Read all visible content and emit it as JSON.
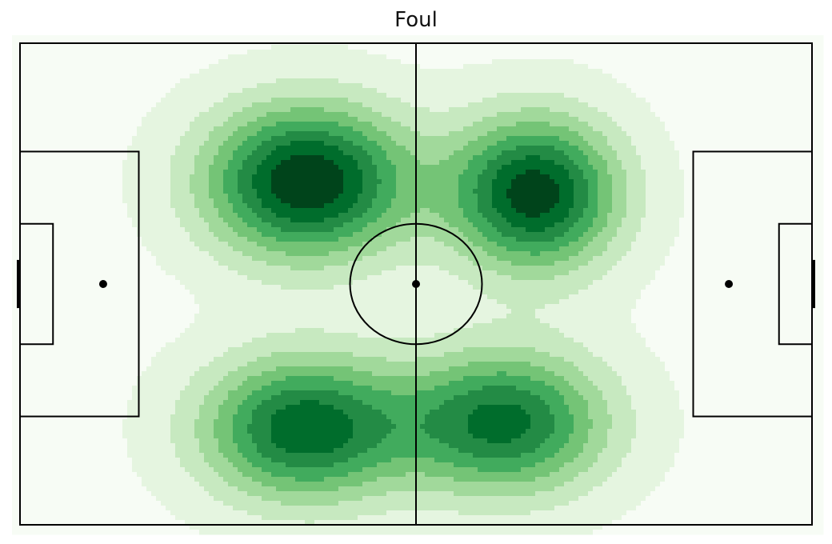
{
  "chart_data": {
    "type": "heatmap",
    "title": "Foul",
    "xlabel": "",
    "ylabel": "",
    "xlim": [
      0,
      120
    ],
    "ylim": [
      0,
      80
    ],
    "colormap": "Greens",
    "color_scale": [
      "#f7fcf5",
      "#e5f5e0",
      "#c7e9c0",
      "#a1d99b",
      "#74c476",
      "#41ab5d",
      "#238b45",
      "#006d2c",
      "#00441b"
    ],
    "levels": 9,
    "grid": false,
    "legend": "none",
    "density_hotspots": [
      {
        "x": 43.5,
        "y": 23.0,
        "weight": 1.0,
        "sx": 11.0,
        "sy": 9.0
      },
      {
        "x": 78.0,
        "y": 25.0,
        "weight": 0.95,
        "sx": 9.0,
        "sy": 9.0
      },
      {
        "x": 43.0,
        "y": 64.0,
        "weight": 0.85,
        "sx": 11.0,
        "sy": 8.5
      },
      {
        "x": 73.5,
        "y": 63.0,
        "weight": 0.8,
        "sx": 11.0,
        "sy": 8.5
      }
    ],
    "pitch_lines": "#000000",
    "marker_color": "#000000"
  }
}
